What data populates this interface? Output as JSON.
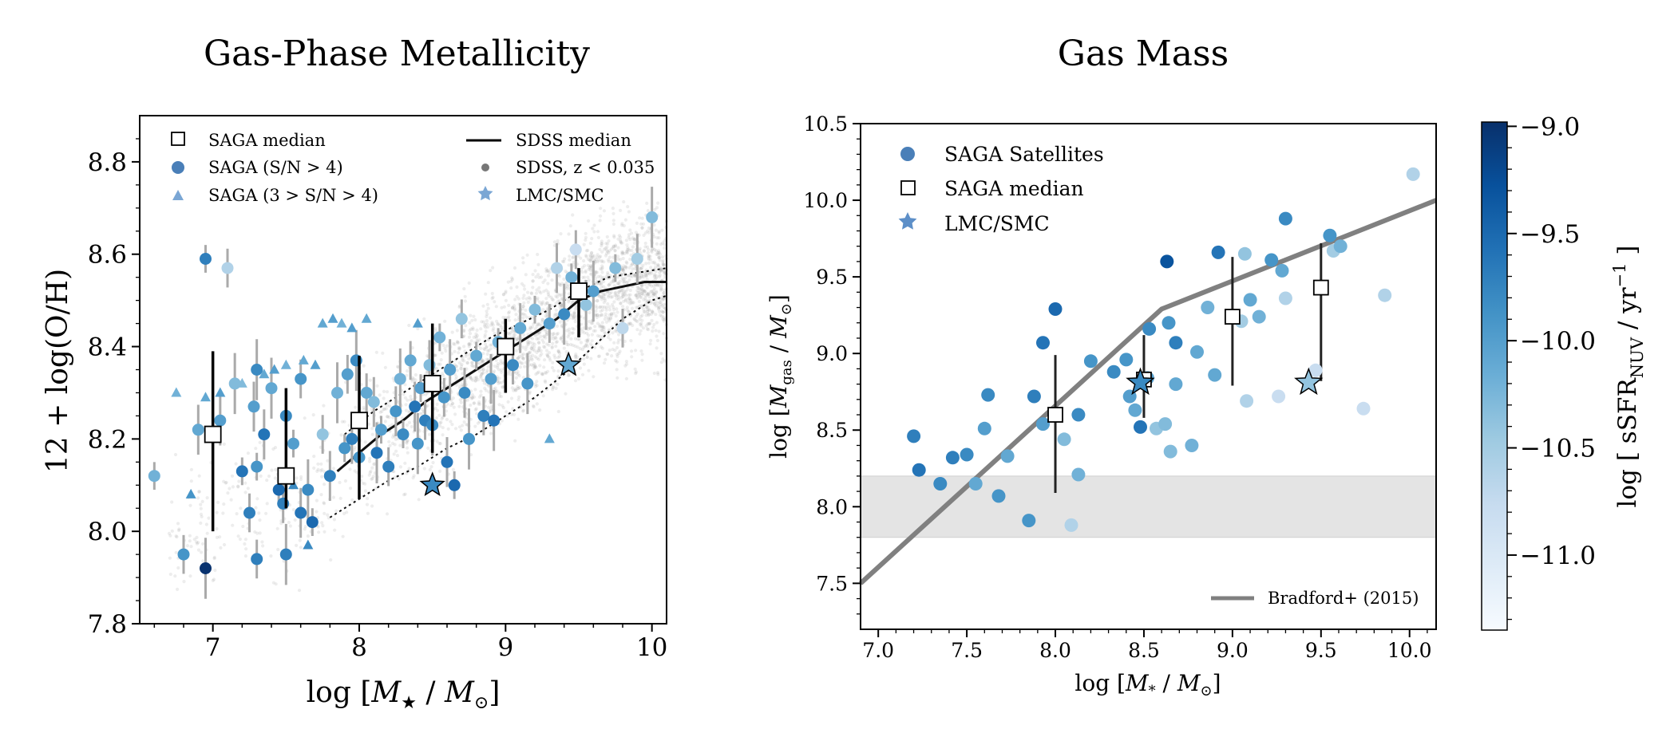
{
  "chart_data": [
    {
      "type": "scatter",
      "title": "Gas-Phase Metallicity",
      "xlabel": "log  [M★ / M⊙]",
      "ylabel": "12 + log(O/H)",
      "xlim": [
        6.5,
        10.1
      ],
      "ylim": [
        7.8,
        8.9
      ],
      "x_ticks": [
        "7",
        "8",
        "9",
        "10"
      ],
      "y_ticks": [
        "7.8",
        "8.0",
        "8.2",
        "8.4",
        "8.6",
        "8.8"
      ],
      "grid": false,
      "legend_position": "top, two columns",
      "legend": {
        "saga_median": "SAGA median",
        "saga_high_sn": "SAGA (S/N > 4)",
        "saga_low_sn": "SAGA (3 > S/N > 4)",
        "sdss_median": "SDSS median",
        "sdss_points": "SDSS, z < 0.035",
        "lmc_smc": "LMC/SMC"
      },
      "saga_median": [
        {
          "x": 7.0,
          "y": 8.21,
          "ylo": 8.0,
          "yhi": 8.39
        },
        {
          "x": 7.5,
          "y": 8.12,
          "ylo": 8.05,
          "yhi": 8.31
        },
        {
          "x": 8.0,
          "y": 8.24,
          "ylo": 8.07,
          "yhi": 8.38
        },
        {
          "x": 8.5,
          "y": 8.32,
          "ylo": 8.17,
          "yhi": 8.45
        },
        {
          "x": 9.0,
          "y": 8.4,
          "ylo": 8.3,
          "yhi": 8.46
        },
        {
          "x": 9.5,
          "y": 8.52,
          "ylo": 8.42,
          "yhi": 8.57
        }
      ],
      "sdss_median": {
        "x": [
          7.85,
          8.0,
          8.15,
          8.3,
          8.45,
          8.6,
          8.75,
          8.9,
          9.05,
          9.2,
          9.35,
          9.5,
          9.65,
          9.8,
          9.95,
          10.1
        ],
        "y": [
          8.13,
          8.17,
          8.21,
          8.24,
          8.28,
          8.31,
          8.34,
          8.37,
          8.4,
          8.43,
          8.46,
          8.5,
          8.52,
          8.53,
          8.54,
          8.54
        ]
      },
      "sdss_p16": {
        "x": [
          7.8,
          8.0,
          8.2,
          8.4,
          8.6,
          8.8,
          9.0,
          9.2,
          9.4,
          9.6,
          9.8,
          10.0,
          10.1
        ],
        "y": [
          8.03,
          8.07,
          8.11,
          8.14,
          8.18,
          8.21,
          8.25,
          8.29,
          8.34,
          8.4,
          8.46,
          8.5,
          8.51
        ]
      },
      "sdss_p84": {
        "x": [
          7.9,
          8.1,
          8.3,
          8.5,
          8.7,
          8.9,
          9.1,
          9.3,
          9.5,
          9.7,
          9.9,
          10.1
        ],
        "y": [
          8.21,
          8.26,
          8.3,
          8.34,
          8.38,
          8.42,
          8.45,
          8.48,
          8.52,
          8.55,
          8.56,
          8.57
        ]
      },
      "lmc_smc": [
        {
          "x": 8.5,
          "y": 8.1,
          "ssfr": -9.8
        },
        {
          "x": 9.43,
          "y": 8.36,
          "ssfr": -10.1
        }
      ],
      "saga_high_sn": [
        {
          "x": 6.6,
          "y": 8.12,
          "ssfr": -10.2
        },
        {
          "x": 6.8,
          "y": 7.95,
          "ssfr": -9.9
        },
        {
          "x": 6.9,
          "y": 8.22,
          "ssfr": -10.1
        },
        {
          "x": 6.95,
          "y": 7.92,
          "ssfr": -9.0
        },
        {
          "x": 6.95,
          "y": 8.59,
          "ssfr": -9.7
        },
        {
          "x": 7.1,
          "y": 8.57,
          "ssfr": -10.6
        },
        {
          "x": 7.05,
          "y": 8.24,
          "ssfr": -10.0
        },
        {
          "x": 7.15,
          "y": 8.32,
          "ssfr": -10.3
        },
        {
          "x": 7.2,
          "y": 8.13,
          "ssfr": -9.6
        },
        {
          "x": 7.25,
          "y": 8.04,
          "ssfr": -9.7
        },
        {
          "x": 7.28,
          "y": 8.27,
          "ssfr": -10.0
        },
        {
          "x": 7.3,
          "y": 8.35,
          "ssfr": -9.8
        },
        {
          "x": 7.3,
          "y": 8.14,
          "ssfr": -9.9
        },
        {
          "x": 7.3,
          "y": 7.94,
          "ssfr": -9.7
        },
        {
          "x": 7.35,
          "y": 8.21,
          "ssfr": -9.6
        },
        {
          "x": 7.4,
          "y": 8.31,
          "ssfr": -10.1
        },
        {
          "x": 7.45,
          "y": 8.09,
          "ssfr": -9.5
        },
        {
          "x": 7.48,
          "y": 8.06,
          "ssfr": -9.7
        },
        {
          "x": 7.5,
          "y": 8.25,
          "ssfr": -9.8
        },
        {
          "x": 7.5,
          "y": 7.95,
          "ssfr": -9.7
        },
        {
          "x": 7.55,
          "y": 8.19,
          "ssfr": -10.0
        },
        {
          "x": 7.6,
          "y": 8.33,
          "ssfr": -9.9
        },
        {
          "x": 7.6,
          "y": 8.04,
          "ssfr": -9.6
        },
        {
          "x": 7.65,
          "y": 8.09,
          "ssfr": -9.8
        },
        {
          "x": 7.68,
          "y": 8.02,
          "ssfr": -9.5
        },
        {
          "x": 7.75,
          "y": 8.21,
          "ssfr": -10.4
        },
        {
          "x": 7.8,
          "y": 8.12,
          "ssfr": -9.7
        },
        {
          "x": 7.85,
          "y": 8.3,
          "ssfr": -10.2
        },
        {
          "x": 7.9,
          "y": 8.18,
          "ssfr": -9.9
        },
        {
          "x": 7.92,
          "y": 8.34,
          "ssfr": -10.0
        },
        {
          "x": 7.95,
          "y": 8.2,
          "ssfr": -9.7
        },
        {
          "x": 7.98,
          "y": 8.37,
          "ssfr": -9.8
        },
        {
          "x": 8.0,
          "y": 8.16,
          "ssfr": -9.9
        },
        {
          "x": 8.05,
          "y": 8.3,
          "ssfr": -10.1
        },
        {
          "x": 8.1,
          "y": 8.28,
          "ssfr": -10.3
        },
        {
          "x": 8.12,
          "y": 8.17,
          "ssfr": -9.6
        },
        {
          "x": 8.15,
          "y": 8.22,
          "ssfr": -10.0
        },
        {
          "x": 8.2,
          "y": 8.14,
          "ssfr": -9.7
        },
        {
          "x": 8.25,
          "y": 8.26,
          "ssfr": -9.9
        },
        {
          "x": 8.28,
          "y": 8.33,
          "ssfr": -10.2
        },
        {
          "x": 8.3,
          "y": 8.21,
          "ssfr": -9.8
        },
        {
          "x": 8.35,
          "y": 8.37,
          "ssfr": -10.1
        },
        {
          "x": 8.38,
          "y": 8.27,
          "ssfr": -9.6
        },
        {
          "x": 8.4,
          "y": 8.19,
          "ssfr": -9.9
        },
        {
          "x": 8.42,
          "y": 8.31,
          "ssfr": -10.0
        },
        {
          "x": 8.45,
          "y": 8.24,
          "ssfr": -9.7
        },
        {
          "x": 8.48,
          "y": 8.36,
          "ssfr": -10.3
        },
        {
          "x": 8.5,
          "y": 8.23,
          "ssfr": -9.8
        },
        {
          "x": 8.55,
          "y": 8.42,
          "ssfr": -10.2
        },
        {
          "x": 8.58,
          "y": 8.29,
          "ssfr": -9.9
        },
        {
          "x": 8.6,
          "y": 8.15,
          "ssfr": -9.6
        },
        {
          "x": 8.62,
          "y": 8.35,
          "ssfr": -10.0
        },
        {
          "x": 8.65,
          "y": 8.1,
          "ssfr": -9.5
        },
        {
          "x": 8.7,
          "y": 8.46,
          "ssfr": -10.4
        },
        {
          "x": 8.72,
          "y": 8.3,
          "ssfr": -9.8
        },
        {
          "x": 8.75,
          "y": 8.2,
          "ssfr": -9.9
        },
        {
          "x": 8.8,
          "y": 8.38,
          "ssfr": -10.1
        },
        {
          "x": 8.85,
          "y": 8.25,
          "ssfr": -9.7
        },
        {
          "x": 8.9,
          "y": 8.33,
          "ssfr": -10.0
        },
        {
          "x": 8.92,
          "y": 8.24,
          "ssfr": -9.6
        },
        {
          "x": 8.95,
          "y": 8.41,
          "ssfr": -10.2
        },
        {
          "x": 9.05,
          "y": 8.36,
          "ssfr": -9.8
        },
        {
          "x": 9.1,
          "y": 8.44,
          "ssfr": -10.1
        },
        {
          "x": 9.15,
          "y": 8.32,
          "ssfr": -9.9
        },
        {
          "x": 9.2,
          "y": 8.48,
          "ssfr": -10.3
        },
        {
          "x": 9.3,
          "y": 8.45,
          "ssfr": -10.0
        },
        {
          "x": 9.35,
          "y": 8.57,
          "ssfr": -10.6
        },
        {
          "x": 9.4,
          "y": 8.47,
          "ssfr": -9.8
        },
        {
          "x": 9.45,
          "y": 8.55,
          "ssfr": -10.2
        },
        {
          "x": 9.48,
          "y": 8.61,
          "ssfr": -10.8
        },
        {
          "x": 9.55,
          "y": 8.49,
          "ssfr": -10.4
        },
        {
          "x": 9.6,
          "y": 8.52,
          "ssfr": -10.0
        },
        {
          "x": 9.75,
          "y": 8.57,
          "ssfr": -10.3
        },
        {
          "x": 9.8,
          "y": 8.44,
          "ssfr": -10.7
        },
        {
          "x": 9.9,
          "y": 8.59,
          "ssfr": -10.5
        },
        {
          "x": 10.0,
          "y": 8.68,
          "ssfr": -10.3
        }
      ],
      "saga_low_sn": [
        {
          "x": 6.75,
          "y": 8.3,
          "ssfr": -10.2
        },
        {
          "x": 6.85,
          "y": 8.08,
          "ssfr": -9.9
        },
        {
          "x": 6.95,
          "y": 8.29,
          "ssfr": -10.1
        },
        {
          "x": 7.05,
          "y": 8.3,
          "ssfr": -10.0
        },
        {
          "x": 7.2,
          "y": 8.32,
          "ssfr": -10.3
        },
        {
          "x": 7.35,
          "y": 8.34,
          "ssfr": -10.1
        },
        {
          "x": 7.42,
          "y": 8.35,
          "ssfr": -10.0
        },
        {
          "x": 7.5,
          "y": 8.36,
          "ssfr": -10.2
        },
        {
          "x": 7.55,
          "y": 8.1,
          "ssfr": -9.8
        },
        {
          "x": 7.62,
          "y": 8.37,
          "ssfr": -10.1
        },
        {
          "x": 7.65,
          "y": 7.97,
          "ssfr": -9.8
        },
        {
          "x": 7.7,
          "y": 8.36,
          "ssfr": -10.0
        },
        {
          "x": 7.75,
          "y": 8.45,
          "ssfr": -10.1
        },
        {
          "x": 7.82,
          "y": 8.46,
          "ssfr": -10.0
        },
        {
          "x": 7.88,
          "y": 8.45,
          "ssfr": -10.2
        },
        {
          "x": 7.95,
          "y": 8.44,
          "ssfr": -10.0
        },
        {
          "x": 8.05,
          "y": 8.46,
          "ssfr": -10.1
        },
        {
          "x": 8.4,
          "y": 8.45,
          "ssfr": -10.0
        },
        {
          "x": 9.3,
          "y": 8.2,
          "ssfr": -10.1
        }
      ]
    },
    {
      "type": "scatter",
      "title": "Gas Mass",
      "xlabel": "log  [M* / M⊙]",
      "ylabel": "log  [M_gas / M⊙]",
      "xlim": [
        6.9,
        10.15
      ],
      "ylim": [
        7.2,
        10.5
      ],
      "x_ticks": [
        "7.0",
        "7.5",
        "8.0",
        "8.5",
        "9.0",
        "9.5",
        "10.0"
      ],
      "y_ticks": [
        "7.5",
        "8.0",
        "8.5",
        "9.0",
        "9.5",
        "10.0",
        "10.5"
      ],
      "grid": false,
      "legend_position": "top-left",
      "legend": {
        "saga_satellites": "SAGA Satellites",
        "saga_median": "SAGA median",
        "lmc_smc": "LMC/SMC",
        "bradford": "Bradford+ (2015)"
      },
      "shaded_band_y": [
        7.8,
        8.2
      ],
      "bradford_line": {
        "x": [
          6.9,
          8.6,
          10.15
        ],
        "y": [
          7.5,
          9.29,
          10.0
        ]
      },
      "saga_median": [
        {
          "x": 8.0,
          "y": 8.6,
          "ylo": 8.09,
          "yhi": 8.99
        },
        {
          "x": 8.5,
          "y": 8.83,
          "ylo": 8.58,
          "yhi": 9.12
        },
        {
          "x": 9.0,
          "y": 9.24,
          "ylo": 8.79,
          "yhi": 9.63
        },
        {
          "x": 9.5,
          "y": 9.43,
          "ylo": 8.82,
          "yhi": 9.72
        }
      ],
      "lmc_smc": [
        {
          "x": 8.48,
          "y": 8.81,
          "ssfr": -9.8
        },
        {
          "x": 9.43,
          "y": 8.81,
          "ssfr": -10.4
        }
      ],
      "saga_satellites": [
        {
          "x": 7.2,
          "y": 8.46,
          "ssfr": -9.7
        },
        {
          "x": 7.23,
          "y": 8.24,
          "ssfr": -9.6
        },
        {
          "x": 7.35,
          "y": 8.15,
          "ssfr": -9.8
        },
        {
          "x": 7.42,
          "y": 8.32,
          "ssfr": -9.7
        },
        {
          "x": 7.5,
          "y": 8.34,
          "ssfr": -9.8
        },
        {
          "x": 7.55,
          "y": 8.15,
          "ssfr": -10.1
        },
        {
          "x": 7.6,
          "y": 8.51,
          "ssfr": -10.0
        },
        {
          "x": 7.62,
          "y": 8.73,
          "ssfr": -9.8
        },
        {
          "x": 7.68,
          "y": 8.07,
          "ssfr": -9.9
        },
        {
          "x": 7.73,
          "y": 8.33,
          "ssfr": -10.1
        },
        {
          "x": 7.85,
          "y": 7.91,
          "ssfr": -9.9
        },
        {
          "x": 7.88,
          "y": 8.72,
          "ssfr": -9.7
        },
        {
          "x": 7.93,
          "y": 9.07,
          "ssfr": -9.6
        },
        {
          "x": 7.93,
          "y": 8.54,
          "ssfr": -10.0
        },
        {
          "x": 8.0,
          "y": 9.29,
          "ssfr": -9.5
        },
        {
          "x": 8.05,
          "y": 8.44,
          "ssfr": -10.3
        },
        {
          "x": 8.09,
          "y": 7.88,
          "ssfr": -10.6
        },
        {
          "x": 8.13,
          "y": 8.6,
          "ssfr": -9.8
        },
        {
          "x": 8.13,
          "y": 8.21,
          "ssfr": -10.2
        },
        {
          "x": 8.2,
          "y": 8.95,
          "ssfr": -9.9
        },
        {
          "x": 8.33,
          "y": 8.88,
          "ssfr": -9.8
        },
        {
          "x": 8.4,
          "y": 8.96,
          "ssfr": -9.9
        },
        {
          "x": 8.42,
          "y": 8.72,
          "ssfr": -10.0
        },
        {
          "x": 8.45,
          "y": 8.63,
          "ssfr": -10.1
        },
        {
          "x": 8.48,
          "y": 8.52,
          "ssfr": -9.6
        },
        {
          "x": 8.52,
          "y": 8.84,
          "ssfr": -10.0
        },
        {
          "x": 8.53,
          "y": 9.16,
          "ssfr": -9.8
        },
        {
          "x": 8.57,
          "y": 8.51,
          "ssfr": -10.4
        },
        {
          "x": 8.62,
          "y": 8.54,
          "ssfr": -10.3
        },
        {
          "x": 8.63,
          "y": 9.6,
          "ssfr": -9.3
        },
        {
          "x": 8.64,
          "y": 9.2,
          "ssfr": -9.9
        },
        {
          "x": 8.65,
          "y": 8.36,
          "ssfr": -10.3
        },
        {
          "x": 8.68,
          "y": 9.07,
          "ssfr": -9.7
        },
        {
          "x": 8.68,
          "y": 8.8,
          "ssfr": -10.1
        },
        {
          "x": 8.77,
          "y": 8.4,
          "ssfr": -10.2
        },
        {
          "x": 8.8,
          "y": 9.01,
          "ssfr": -10.1
        },
        {
          "x": 8.86,
          "y": 9.3,
          "ssfr": -10.2
        },
        {
          "x": 8.9,
          "y": 8.86,
          "ssfr": -10.1
        },
        {
          "x": 8.92,
          "y": 9.66,
          "ssfr": -9.6
        },
        {
          "x": 9.05,
          "y": 9.21,
          "ssfr": -10.5
        },
        {
          "x": 9.07,
          "y": 9.65,
          "ssfr": -10.4
        },
        {
          "x": 9.08,
          "y": 8.69,
          "ssfr": -10.6
        },
        {
          "x": 9.1,
          "y": 9.35,
          "ssfr": -10.1
        },
        {
          "x": 9.15,
          "y": 9.24,
          "ssfr": -10.2
        },
        {
          "x": 9.22,
          "y": 9.61,
          "ssfr": -9.9
        },
        {
          "x": 9.26,
          "y": 8.72,
          "ssfr": -10.8
        },
        {
          "x": 9.28,
          "y": 9.54,
          "ssfr": -10.1
        },
        {
          "x": 9.3,
          "y": 9.36,
          "ssfr": -10.6
        },
        {
          "x": 9.3,
          "y": 9.88,
          "ssfr": -9.8
        },
        {
          "x": 9.47,
          "y": 8.89,
          "ssfr": -10.8
        },
        {
          "x": 9.55,
          "y": 9.77,
          "ssfr": -9.9
        },
        {
          "x": 9.57,
          "y": 9.67,
          "ssfr": -10.5
        },
        {
          "x": 9.61,
          "y": 9.7,
          "ssfr": -10.2
        },
        {
          "x": 9.74,
          "y": 8.64,
          "ssfr": -10.8
        },
        {
          "x": 9.86,
          "y": 9.38,
          "ssfr": -10.6
        },
        {
          "x": 10.02,
          "y": 10.17,
          "ssfr": -10.6
        }
      ]
    },
    {
      "type": "colorbar",
      "label": "log [ sSFR_NUV / yr⁻¹ ]",
      "range": [
        -11.35,
        -8.98
      ],
      "ticks": [
        "−9.0",
        "−9.5",
        "−10.0",
        "−10.5",
        "−11.0"
      ],
      "tick_values": [
        -9.0,
        -9.5,
        -10.0,
        -10.5,
        -11.0
      ],
      "colors": [
        "#f7fbff",
        "#deebf7",
        "#c6dbef",
        "#9ecae1",
        "#6baed6",
        "#4292c6",
        "#2171b5",
        "#08519c",
        "#08306b"
      ]
    }
  ]
}
